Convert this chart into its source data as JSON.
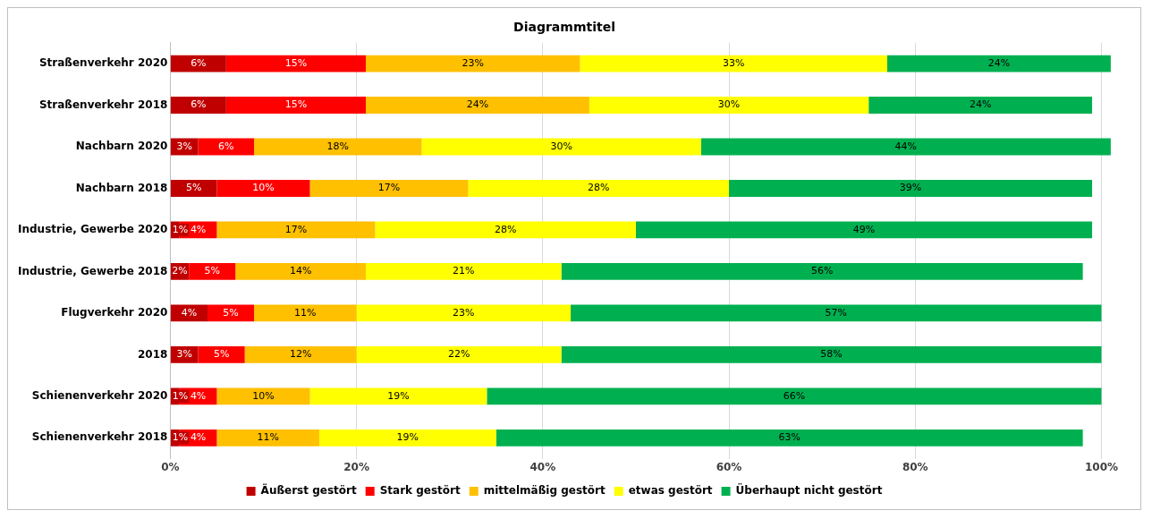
{
  "chart_data": {
    "type": "bar",
    "title": "Diagrammtitel",
    "orientation": "horizontal",
    "stacked": true,
    "categories": [
      "Straßenverkehr 2020",
      "Straßenverkehr 2018",
      "Nachbarn 2020",
      "Nachbarn 2018",
      "Industrie, Gewerbe 2020",
      "Industrie, Gewerbe 2018",
      "Flugverkehr 2020",
      "2018",
      "Schienenverkehr 2020",
      "Schienenverkehr 2018"
    ],
    "series": [
      {
        "name": "Äußerst gestört",
        "color": "#c00000",
        "values": [
          6,
          6,
          3,
          5,
          1,
          2,
          4,
          3,
          1,
          1
        ],
        "value_labels": [
          "6%",
          "6%",
          "3%",
          "5%",
          "1%",
          "2%",
          "4%",
          "3%",
          "1%",
          "1%"
        ]
      },
      {
        "name": "Stark gestört",
        "color": "#ff0000",
        "values": [
          15,
          15,
          6,
          10,
          4,
          5,
          5,
          5,
          4,
          4
        ],
        "value_labels": [
          "15%",
          "15%",
          "6%",
          "10%",
          "4%",
          "5%",
          "5%",
          "5%",
          "4%",
          "4%"
        ]
      },
      {
        "name": "mittelmäßig gestört",
        "color": "#ffc000",
        "values": [
          23,
          24,
          18,
          17,
          17,
          14,
          11,
          12,
          10,
          11
        ],
        "value_labels": [
          "23%",
          "24%",
          "18%",
          "17%",
          "17%",
          "14%",
          "11%",
          "12%",
          "10%",
          "11%"
        ]
      },
      {
        "name": "etwas gestört",
        "color": "#ffff00",
        "values": [
          33,
          30,
          30,
          28,
          28,
          21,
          23,
          22,
          19,
          19
        ],
        "value_labels": [
          "33%",
          "30%",
          "30%",
          "28%",
          "28%",
          "21%",
          "23%",
          "22%",
          "19%",
          "19%"
        ]
      },
      {
        "name": "Überhaupt nicht gestört",
        "color": "#00b050",
        "values": [
          24,
          24,
          44,
          39,
          49,
          56,
          57,
          58,
          66,
          63
        ],
        "value_labels": [
          "24%",
          "24%",
          "44%",
          "39%",
          "49%",
          "56%",
          "57%",
          "58%",
          "66%",
          "63%"
        ]
      }
    ],
    "xlim": [
      0,
      101.3
    ],
    "xticks": [
      {
        "value": 0,
        "label": "0%"
      },
      {
        "value": 20,
        "label": "20%"
      },
      {
        "value": 40,
        "label": "40%"
      },
      {
        "value": 60,
        "label": "60%"
      },
      {
        "value": 80,
        "label": "80%"
      },
      {
        "value": 100,
        "label": "100%"
      }
    ],
    "grid": "x",
    "legend": "bottom"
  }
}
